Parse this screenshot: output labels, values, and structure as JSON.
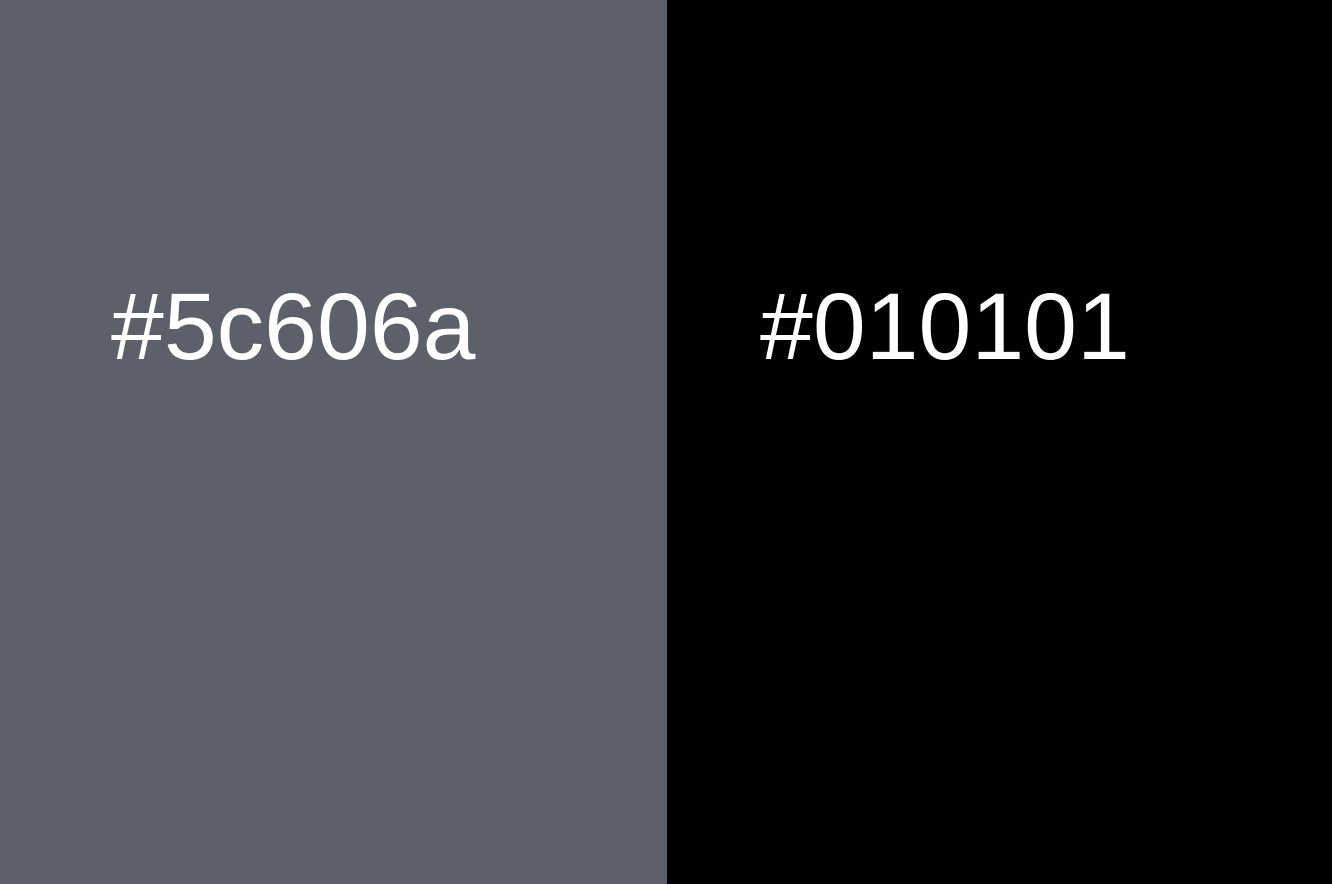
{
  "swatches": [
    {
      "label": "#5c606a",
      "color": "#5c606a",
      "text_color": "#ffffff"
    },
    {
      "label": "#010101",
      "color": "#010101",
      "text_color": "#ffffff"
    }
  ]
}
